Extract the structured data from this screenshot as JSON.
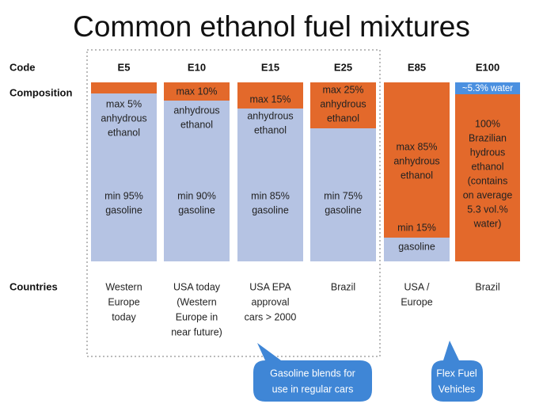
{
  "title": "Common ethanol fuel mixtures",
  "row_labels": [
    "Code",
    "Composition",
    "Countries"
  ],
  "columns": [
    {
      "code": "E5",
      "blocks": [
        [
          "max 5%",
          "anhydrous",
          "ethanol"
        ],
        [
          "min 95%",
          "gasoline"
        ]
      ],
      "countries": [
        "Western",
        "Europe",
        "today"
      ]
    },
    {
      "code": "E10",
      "blocks": [
        [
          "max 10%"
        ],
        [
          "anhydrous",
          "ethanol"
        ],
        [
          "min 90%",
          "gasoline"
        ]
      ],
      "countries": [
        "USA today",
        "(Western",
        "Europe in",
        "near future)"
      ]
    },
    {
      "code": "E15",
      "blocks": [
        [
          "max 15%"
        ],
        [
          "anhydrous",
          "ethanol"
        ],
        [
          "min 85%",
          "gasoline"
        ]
      ],
      "countries": [
        "USA EPA",
        "approval",
        "cars > 2000"
      ]
    },
    {
      "code": "E25",
      "blocks": [
        [
          "max 25%",
          "anhydrous",
          "ethanol"
        ],
        [
          "min 75%",
          "gasoline"
        ]
      ],
      "countries": [
        "Brazil"
      ]
    },
    {
      "code": "E85",
      "blocks": [
        [
          "max 85%",
          "anhydrous",
          "ethanol"
        ],
        [
          "min 15%"
        ],
        [
          "gasoline"
        ]
      ],
      "countries": [
        "USA /",
        "Europe"
      ]
    },
    {
      "code": "E100",
      "blocks": [
        [
          "~5.3% water"
        ],
        [
          "100%",
          "Brazilian",
          "hydrous",
          "ethanol",
          "(contains",
          "on average",
          "5.3 vol.%",
          "water)"
        ]
      ],
      "countries": [
        "Brazil"
      ]
    }
  ],
  "callouts": [
    [
      "Gasoline blends for",
      "use in regular cars"
    ],
    [
      "Flex Fuel",
      "Vehicles"
    ]
  ]
}
